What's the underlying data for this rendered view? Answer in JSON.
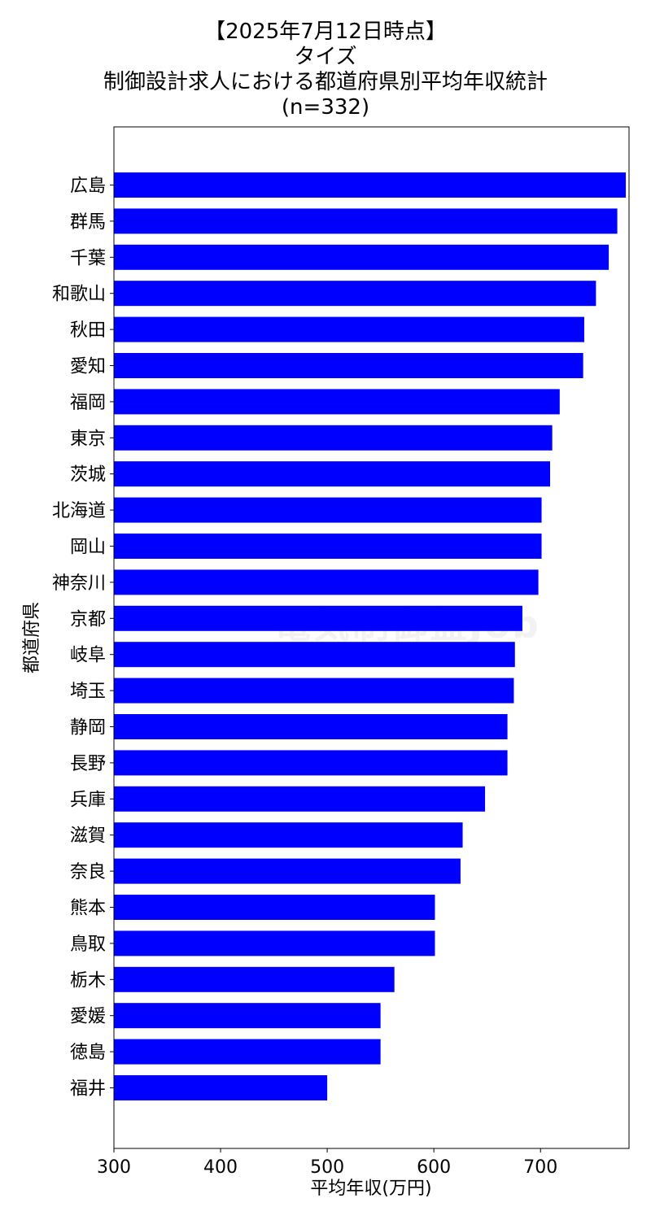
{
  "title": {
    "line1": "【2025年7月12日時点】",
    "line2": "タイズ",
    "line3": "制御設計求人における都道府県別平均年収統計",
    "line4": "(n=332)"
  },
  "watermark": "電気制御盤Job",
  "chart_data": {
    "type": "bar",
    "orientation": "horizontal",
    "xlabel": "平均年収(万円)",
    "ylabel": "都道府県",
    "xlim": [
      300,
      783
    ],
    "xticks": [
      300,
      400,
      500,
      600,
      700
    ],
    "bar_color": "#0000ff",
    "grid": false,
    "categories": [
      "広島",
      "群馬",
      "千葉",
      "和歌山",
      "秋田",
      "愛知",
      "福岡",
      "東京",
      "茨城",
      "北海道",
      "岡山",
      "神奈川",
      "京都",
      "岐阜",
      "埼玉",
      "静岡",
      "長野",
      "兵庫",
      "滋賀",
      "奈良",
      "熊本",
      "鳥取",
      "栃木",
      "愛媛",
      "徳島",
      "福井"
    ],
    "values": [
      780,
      772,
      764,
      752,
      741,
      740,
      718,
      711,
      709,
      701,
      701,
      698,
      683,
      676,
      675,
      669,
      669,
      648,
      627,
      625,
      601,
      601,
      563,
      550,
      550,
      500
    ]
  }
}
